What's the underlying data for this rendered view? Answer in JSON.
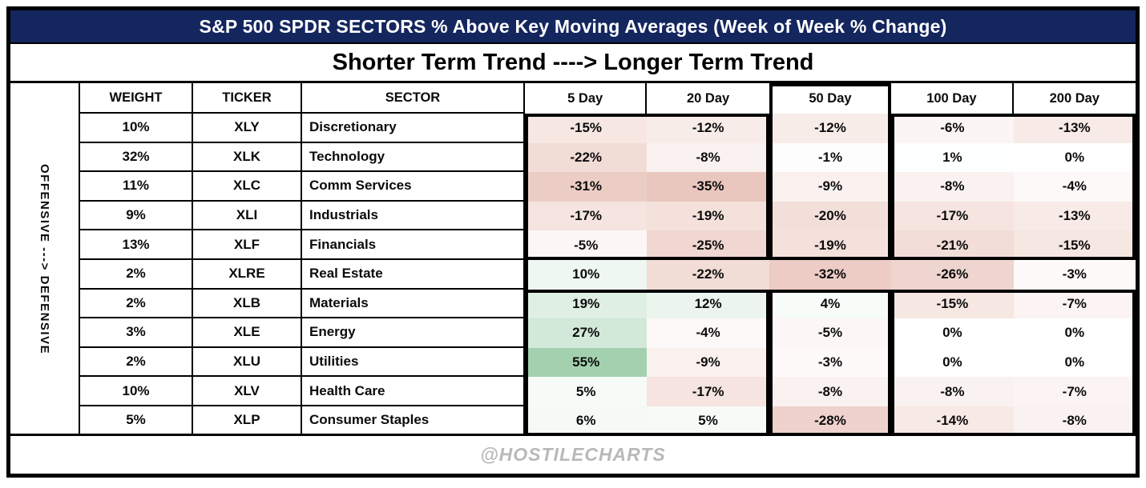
{
  "title": "S&P 500 SPDR SECTORS % Above Key Moving Averages (Week of Week % Change)",
  "subtitle": "Shorter Term Trend ----> Longer Term Trend",
  "side_label": "OFFENSIVE ---> DEFENSIVE",
  "footer": "@HOSTILECHARTS",
  "colors": {
    "title_bg": "#14265E",
    "title_text": "#ffffff",
    "positive_max_green": "#a3d1b0",
    "negative_max_pink": "#eac7be",
    "footer_text": "#b9b9b9"
  },
  "chart_data": {
    "type": "heatmap",
    "title": "S&P 500 SPDR SECTORS % Above Key Moving Averages (Week of Week % Change)",
    "columns": [
      "WEIGHT",
      "TICKER",
      "SECTOR",
      "5 Day",
      "20 Day",
      "50 Day",
      "100 Day",
      "200 Day"
    ],
    "ma_columns": [
      "5 Day",
      "20 Day",
      "50 Day",
      "100 Day",
      "200 Day"
    ],
    "value_format": "percent",
    "color_scale": {
      "negative_min": -35,
      "positive_max": 55,
      "zero": "#ffffff"
    },
    "rows": [
      {
        "weight": "10%",
        "ticker": "XLY",
        "sector": "Discretionary",
        "values": [
          -15,
          -12,
          -12,
          -6,
          -13
        ]
      },
      {
        "weight": "32%",
        "ticker": "XLK",
        "sector": "Technology",
        "values": [
          -22,
          -8,
          -1,
          1,
          0
        ]
      },
      {
        "weight": "11%",
        "ticker": "XLC",
        "sector": "Comm Services",
        "values": [
          -31,
          -35,
          -9,
          -8,
          -4
        ]
      },
      {
        "weight": "9%",
        "ticker": "XLI",
        "sector": "Industrials",
        "values": [
          -17,
          -19,
          -20,
          -17,
          -13
        ]
      },
      {
        "weight": "13%",
        "ticker": "XLF",
        "sector": "Financials",
        "values": [
          -5,
          -25,
          -19,
          -21,
          -15
        ]
      },
      {
        "weight": "2%",
        "ticker": "XLRE",
        "sector": "Real Estate",
        "values": [
          10,
          -22,
          -32,
          -26,
          -3
        ]
      },
      {
        "weight": "2%",
        "ticker": "XLB",
        "sector": "Materials",
        "values": [
          19,
          12,
          4,
          -15,
          -7
        ]
      },
      {
        "weight": "3%",
        "ticker": "XLE",
        "sector": "Energy",
        "values": [
          27,
          -4,
          -5,
          0,
          0
        ]
      },
      {
        "weight": "2%",
        "ticker": "XLU",
        "sector": "Utilities",
        "values": [
          55,
          -9,
          -3,
          0,
          0
        ]
      },
      {
        "weight": "10%",
        "ticker": "XLV",
        "sector": "Health Care",
        "values": [
          5,
          -17,
          -8,
          -8,
          -7
        ]
      },
      {
        "weight": "5%",
        "ticker": "XLP",
        "sector": "Consumer Staples",
        "values": [
          6,
          5,
          -28,
          -14,
          -8
        ]
      }
    ],
    "row_group_boxes": [
      "rows 1-5 boxed per column-group",
      "row 6 (XLRE) band",
      "rows 7-11 boxed per column-group"
    ]
  }
}
